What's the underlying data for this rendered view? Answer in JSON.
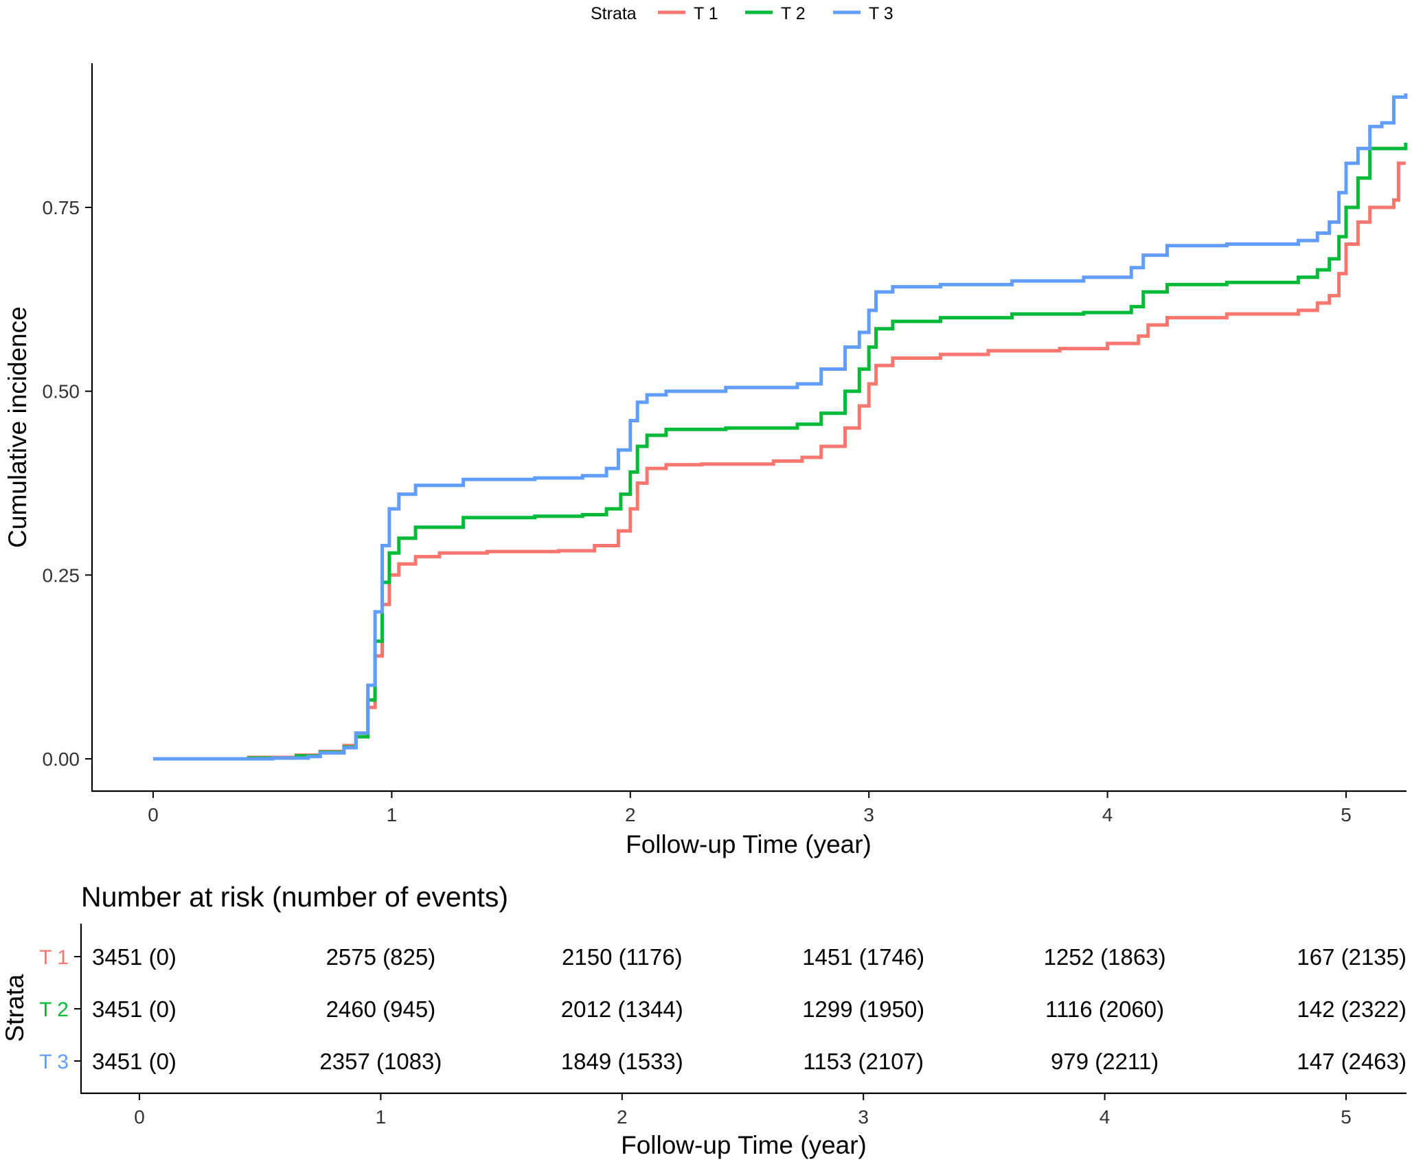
{
  "legend": {
    "title": "Strata",
    "position": "top",
    "entries": [
      {
        "label": "T 1",
        "color": "#F8766D"
      },
      {
        "label": "T 2",
        "color": "#00BA38"
      },
      {
        "label": "T 3",
        "color": "#619CFF"
      }
    ]
  },
  "chart_data": [
    {
      "type": "line",
      "step": true,
      "title": "",
      "xlabel": "Follow-up Time (year)",
      "ylabel": "Cumulative incidence",
      "xlim": [
        -0.25,
        5.25
      ],
      "ylim": [
        -0.02,
        0.9
      ],
      "x_ticks": [
        0,
        1,
        2,
        3,
        4,
        5
      ],
      "x_tick_labels": [
        "0",
        "1",
        "2",
        "3",
        "4",
        "5"
      ],
      "y_ticks": [
        0,
        0.25,
        0.5,
        0.75
      ],
      "y_tick_labels": [
        "0.00",
        "0.25",
        "0.50",
        "0.75"
      ],
      "grid": false,
      "series": [
        {
          "name": "T 1",
          "color": "#F8766D",
          "x": [
            0,
            0.4,
            0.6,
            0.7,
            0.8,
            0.85,
            0.9,
            0.93,
            0.96,
            0.99,
            1.03,
            1.1,
            1.2,
            1.4,
            1.7,
            1.85,
            1.95,
            2.0,
            2.03,
            2.07,
            2.15,
            2.3,
            2.6,
            2.72,
            2.8,
            2.9,
            2.96,
            3.0,
            3.03,
            3.1,
            3.3,
            3.5,
            3.8,
            4.0,
            4.13,
            4.17,
            4.25,
            4.5,
            4.8,
            4.88,
            4.93,
            4.97,
            5.0,
            5.05,
            5.1,
            5.2,
            5.22,
            5.25
          ],
          "y": [
            0,
            0.002,
            0.005,
            0.01,
            0.018,
            0.03,
            0.07,
            0.14,
            0.21,
            0.25,
            0.265,
            0.275,
            0.28,
            0.282,
            0.283,
            0.29,
            0.31,
            0.34,
            0.375,
            0.395,
            0.4,
            0.401,
            0.405,
            0.41,
            0.425,
            0.45,
            0.48,
            0.51,
            0.535,
            0.545,
            0.55,
            0.555,
            0.558,
            0.565,
            0.575,
            0.59,
            0.6,
            0.605,
            0.61,
            0.62,
            0.63,
            0.66,
            0.7,
            0.73,
            0.75,
            0.76,
            0.81,
            0.81
          ]
        },
        {
          "name": "T 2",
          "color": "#00BA38",
          "x": [
            0,
            0.4,
            0.6,
            0.7,
            0.8,
            0.85,
            0.9,
            0.93,
            0.96,
            0.99,
            1.03,
            1.1,
            1.3,
            1.6,
            1.8,
            1.9,
            1.96,
            2.0,
            2.03,
            2.07,
            2.15,
            2.4,
            2.7,
            2.8,
            2.9,
            2.96,
            3.0,
            3.03,
            3.1,
            3.3,
            3.6,
            3.9,
            4.1,
            4.15,
            4.25,
            4.5,
            4.8,
            4.88,
            4.93,
            4.97,
            5.0,
            5.05,
            5.1,
            5.25
          ],
          "y": [
            0,
            0.001,
            0.004,
            0.009,
            0.016,
            0.03,
            0.08,
            0.16,
            0.24,
            0.28,
            0.3,
            0.315,
            0.328,
            0.33,
            0.332,
            0.34,
            0.36,
            0.39,
            0.425,
            0.44,
            0.448,
            0.45,
            0.455,
            0.47,
            0.5,
            0.53,
            0.56,
            0.585,
            0.595,
            0.6,
            0.605,
            0.607,
            0.615,
            0.635,
            0.645,
            0.648,
            0.655,
            0.665,
            0.68,
            0.71,
            0.75,
            0.79,
            0.83,
            0.838
          ]
        },
        {
          "name": "T 3",
          "color": "#619CFF",
          "x": [
            0,
            0.5,
            0.65,
            0.7,
            0.8,
            0.85,
            0.9,
            0.93,
            0.96,
            0.99,
            1.03,
            1.1,
            1.3,
            1.6,
            1.8,
            1.9,
            1.95,
            2.0,
            2.03,
            2.07,
            2.15,
            2.4,
            2.7,
            2.8,
            2.9,
            2.96,
            3.0,
            3.03,
            3.1,
            3.3,
            3.6,
            3.9,
            4.1,
            4.15,
            4.25,
            4.5,
            4.8,
            4.88,
            4.93,
            4.97,
            5.0,
            5.05,
            5.1,
            5.15,
            5.2,
            5.25
          ],
          "y": [
            0,
            0.001,
            0.003,
            0.008,
            0.015,
            0.035,
            0.1,
            0.2,
            0.29,
            0.34,
            0.36,
            0.372,
            0.38,
            0.382,
            0.385,
            0.395,
            0.42,
            0.46,
            0.485,
            0.495,
            0.5,
            0.505,
            0.51,
            0.53,
            0.56,
            0.58,
            0.61,
            0.635,
            0.642,
            0.645,
            0.65,
            0.655,
            0.668,
            0.685,
            0.698,
            0.7,
            0.705,
            0.715,
            0.73,
            0.77,
            0.81,
            0.83,
            0.86,
            0.865,
            0.9,
            0.905
          ]
        }
      ]
    },
    {
      "type": "table",
      "title": "Number at risk (number of events)",
      "xlabel": "Follow-up Time (year)",
      "ylabel": "Strata",
      "xlim": [
        -0.25,
        5.25
      ],
      "x_ticks": [
        0,
        1,
        2,
        3,
        4,
        5
      ],
      "x_tick_labels": [
        "0",
        "1",
        "2",
        "3",
        "4",
        "5"
      ],
      "row_labels": [
        "T 1",
        "T 2",
        "T 3"
      ],
      "row_colors": [
        "#F8766D",
        "#00BA38",
        "#619CFF"
      ],
      "times": [
        0,
        1,
        2,
        3,
        4,
        5
      ],
      "rows": [
        [
          "3451 (0)",
          "2575 (825)",
          "2150 (1176)",
          "1451 (1746)",
          "1252 (1863)",
          "167 (2135)"
        ],
        [
          "3451 (0)",
          "2460 (945)",
          "2012 (1344)",
          "1299 (1950)",
          "1116 (2060)",
          "142 (2322)"
        ],
        [
          "3451 (0)",
          "2357 (1083)",
          "1849 (1533)",
          "1153 (2107)",
          "979 (2211)",
          "147 (2463)"
        ]
      ]
    }
  ]
}
